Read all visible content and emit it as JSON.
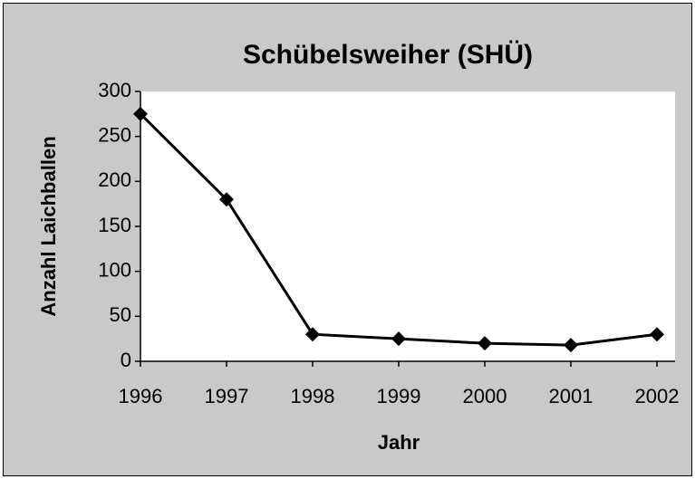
{
  "chart_data": {
    "type": "line",
    "title": "Schübelsweiher (SHÜ)",
    "x_label": "Jahr",
    "y_label": "Anzahl Laichballen",
    "categories": [
      "1996",
      "1997",
      "1998",
      "1999",
      "2000",
      "2001",
      "2002"
    ],
    "series": [
      {
        "name": "Schübelsweiher",
        "color": "#000000",
        "values": [
          275,
          180,
          30,
          25,
          20,
          18,
          30
        ]
      }
    ],
    "ylim": [
      0,
      300
    ],
    "yticks": [
      0,
      50,
      100,
      150,
      200,
      250,
      300
    ],
    "grid": false
  }
}
